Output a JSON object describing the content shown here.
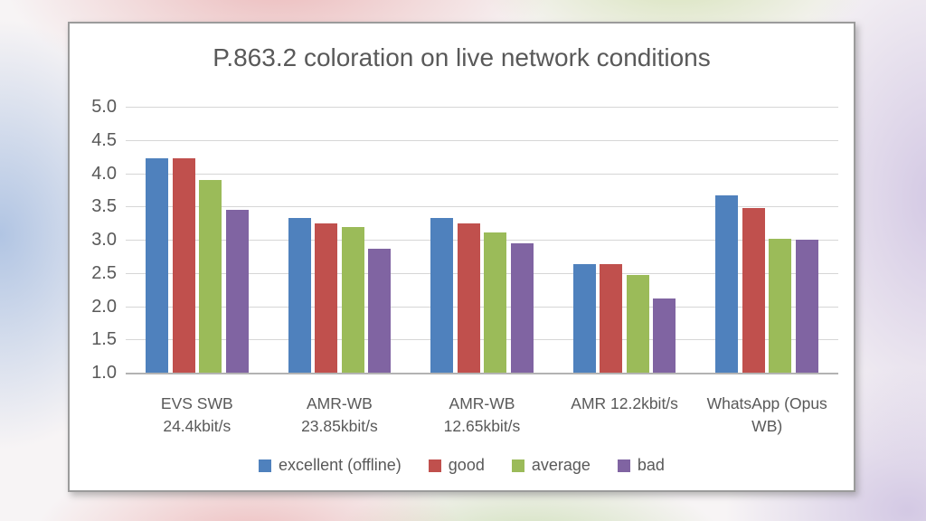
{
  "chart_data": {
    "type": "bar",
    "title": "P.863.2 coloration on live network conditions",
    "categories": [
      "EVS SWB\n24.4kbit/s",
      "AMR-WB\n23.85kbit/s",
      "AMR-WB\n12.65kbit/s",
      "AMR 12.2kbit/s",
      "WhatsApp (Opus\nWB)"
    ],
    "series": [
      {
        "name": "excellent (offline)",
        "color": "#4F81BD",
        "values": [
          4.22,
          3.32,
          3.32,
          2.63,
          3.67
        ]
      },
      {
        "name": "good",
        "color": "#C0504D",
        "values": [
          4.22,
          3.25,
          3.25,
          2.63,
          3.47
        ]
      },
      {
        "name": "average",
        "color": "#9BBB59",
        "values": [
          3.9,
          3.19,
          3.11,
          2.47,
          3.02
        ]
      },
      {
        "name": "bad",
        "color": "#8064A2",
        "values": [
          3.45,
          2.86,
          2.95,
          2.12,
          3.0
        ]
      }
    ],
    "y_axis": {
      "min": 1.0,
      "max": 5.0,
      "step": 0.5,
      "tick_labels": [
        "5.0",
        "4.5",
        "4.0",
        "3.5",
        "3.0",
        "2.5",
        "2.0",
        "1.5",
        "1.0"
      ]
    },
    "xlabel": "",
    "ylabel": "",
    "grid": true,
    "legend_position": "bottom",
    "text_color": "#595959",
    "gridline_color": "#d6d6d6",
    "axis_line_color": "#b3b3b3",
    "panel_background": "#ffffff"
  }
}
